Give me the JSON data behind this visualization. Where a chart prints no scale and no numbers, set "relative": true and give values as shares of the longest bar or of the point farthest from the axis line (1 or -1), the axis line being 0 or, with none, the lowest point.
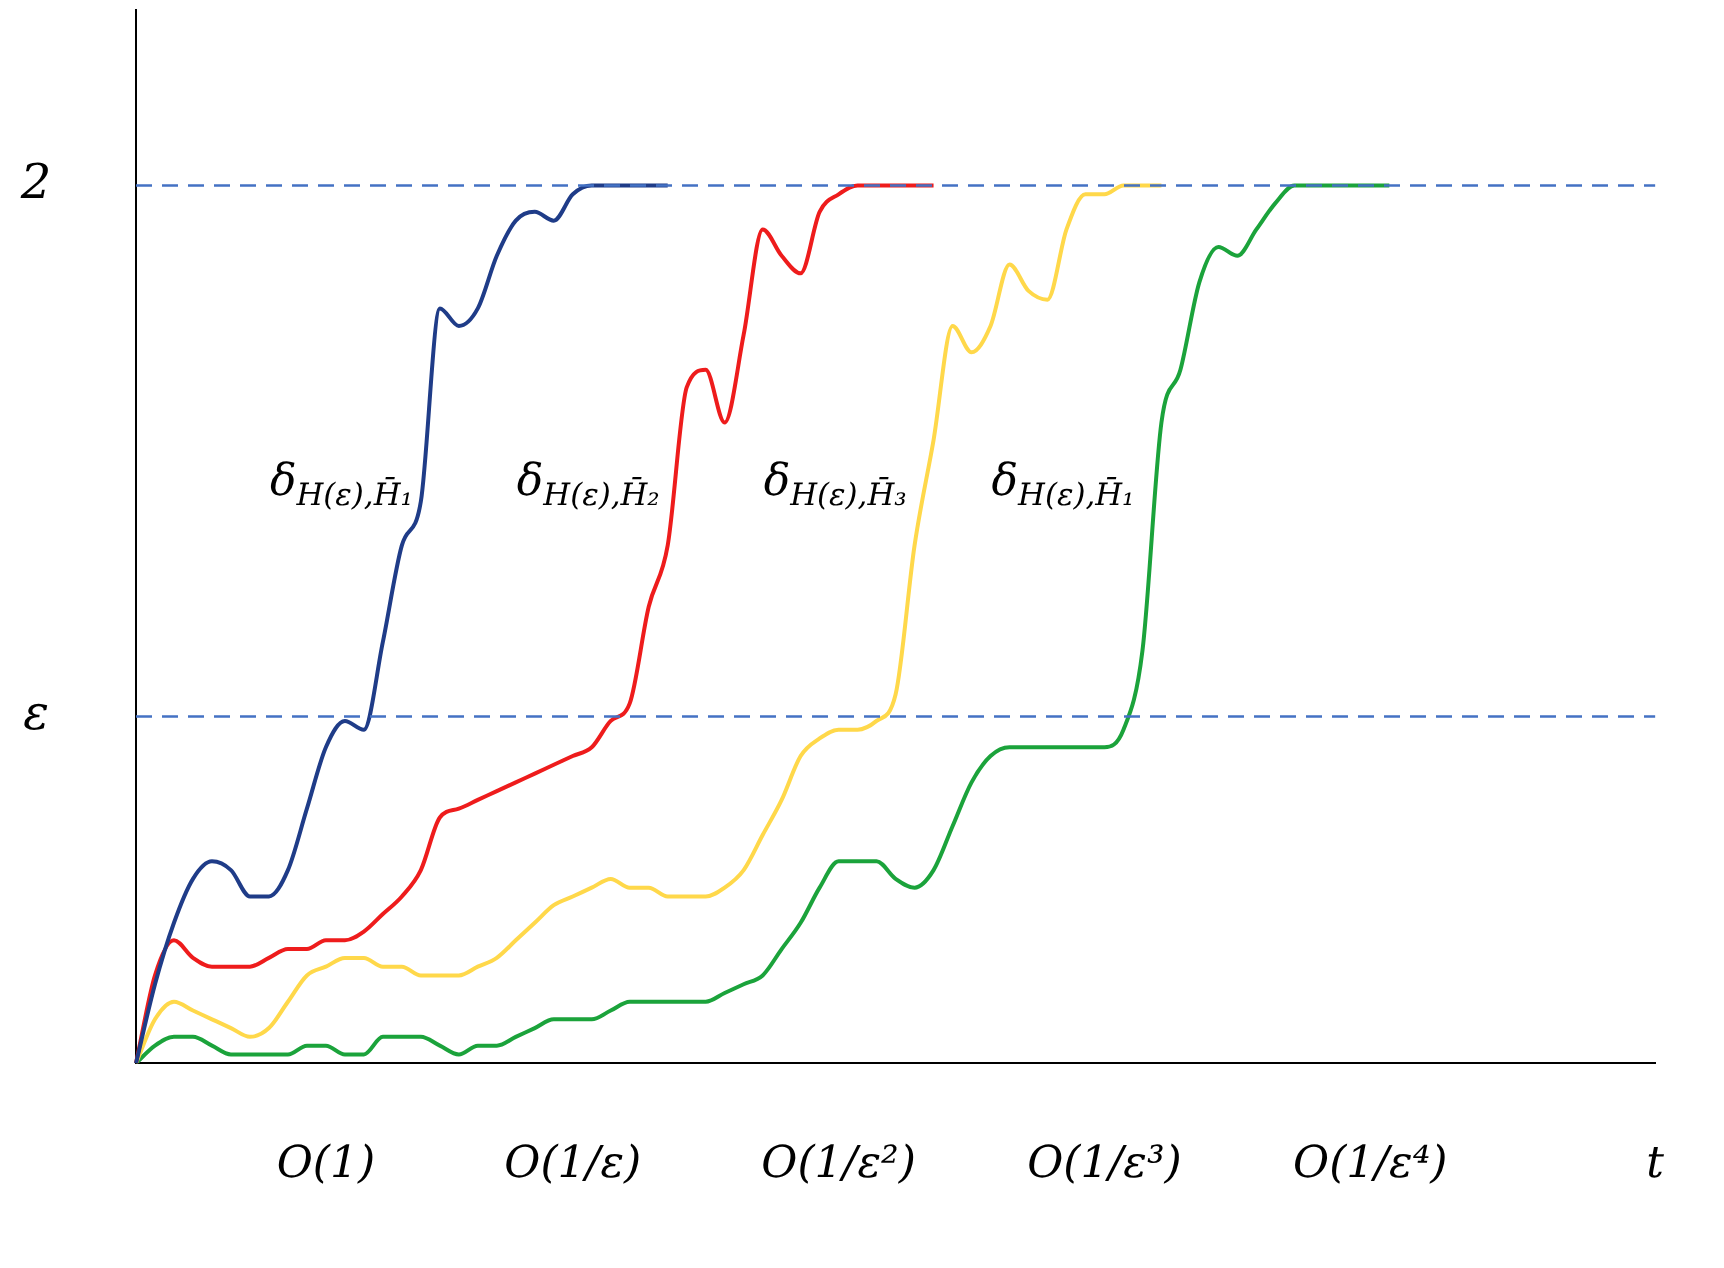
{
  "chart_data": {
    "type": "line",
    "relative": true,
    "legend": false,
    "marker": "none",
    "line_style": "solid",
    "annotations": [
      "2",
      "ε"
    ],
    "categories": [
      null,
      null,
      null,
      null,
      null,
      null,
      null,
      null,
      null,
      null,
      "O(1)",
      null,
      null,
      null,
      null,
      null,
      null,
      null,
      null,
      null,
      null,
      null,
      null,
      "O(1/ε)",
      null,
      null,
      null,
      null,
      null,
      null,
      null,
      null,
      null,
      null,
      null,
      null,
      null,
      "O(1/ε²)",
      null,
      null,
      null,
      null,
      null,
      null,
      null,
      null,
      null,
      null,
      null,
      null,
      null,
      "O(1/ε³)",
      null,
      null,
      null,
      null,
      null,
      null,
      null,
      null,
      null,
      null,
      null,
      null,
      null,
      "O(1/ε⁴)",
      null,
      null,
      null,
      null,
      null,
      null,
      null,
      null,
      null,
      null,
      null,
      null,
      null,
      null,
      "t"
    ],
    "series": [
      {
        "name": "δ$_{H(ε),H̄₁}$",
        "color": "#1f3c88",
        "values": [
          0,
          0.09,
          0.16,
          0.21,
          0.23,
          0.22,
          0.19,
          0.19,
          0.22,
          0.29,
          0.36,
          0.39,
          0.38,
          0.48,
          0.59,
          0.64,
          0.86,
          0.84,
          0.86,
          0.92,
          0.96,
          0.97,
          0.96,
          0.99,
          1,
          1,
          1,
          1,
          1,
          null,
          null,
          null,
          null,
          null,
          null,
          null,
          null,
          null,
          null,
          null,
          null,
          null,
          null,
          null,
          null,
          null,
          null,
          null,
          null,
          null,
          null,
          null,
          null,
          null,
          null,
          null,
          null,
          null,
          null,
          null,
          null,
          null,
          null,
          null,
          null,
          null,
          null,
          null,
          null,
          null,
          null,
          null,
          null,
          null,
          null,
          null,
          null,
          null,
          null,
          null,
          null
        ]
      },
      {
        "name": "δ$_{H(ε),H̄₂}$",
        "color": "#ee1c1c",
        "values": [
          0,
          0.1,
          0.14,
          0.12,
          0.11,
          0.11,
          0.11,
          0.12,
          0.13,
          0.13,
          0.14,
          0.14,
          0.15,
          0.17,
          0.19,
          0.22,
          0.28,
          0.29,
          0.3,
          0.31,
          0.32,
          0.33,
          0.34,
          0.35,
          0.36,
          0.39,
          0.41,
          0.52,
          0.59,
          0.77,
          0.79,
          0.73,
          0.83,
          0.95,
          0.92,
          0.9,
          0.97,
          0.99,
          1,
          1,
          1,
          1,
          1,
          null,
          null,
          null,
          null,
          null,
          null,
          null,
          null,
          null,
          null,
          null,
          null,
          null,
          null,
          null,
          null,
          null,
          null,
          null,
          null,
          null,
          null,
          null,
          null,
          null,
          null,
          null,
          null,
          null,
          null,
          null,
          null,
          null,
          null,
          null,
          null,
          null,
          null
        ]
      },
      {
        "name": "δ$_{H(ε),H̄₃}$",
        "color": "#ffd84a",
        "values": [
          0,
          0.05,
          0.07,
          0.06,
          0.05,
          0.04,
          0.03,
          0.04,
          0.07,
          0.1,
          0.11,
          0.12,
          0.12,
          0.11,
          0.11,
          0.1,
          0.1,
          0.1,
          0.11,
          0.12,
          0.14,
          0.16,
          0.18,
          0.19,
          0.2,
          0.21,
          0.2,
          0.2,
          0.19,
          0.19,
          0.19,
          0.2,
          0.22,
          0.26,
          0.3,
          0.35,
          0.37,
          0.38,
          0.38,
          0.39,
          0.42,
          0.59,
          0.71,
          0.84,
          0.81,
          0.84,
          0.91,
          0.88,
          0.87,
          0.95,
          0.99,
          0.99,
          1,
          1,
          1,
          null,
          null,
          null,
          null,
          null,
          null,
          null,
          null,
          null,
          null,
          null,
          null,
          null,
          null,
          null,
          null,
          null,
          null,
          null,
          null,
          null,
          null,
          null,
          null,
          null,
          null
        ]
      },
      {
        "name": "δ$_{H(ε),H̄₁}$",
        "color": "#1ba33b",
        "values": [
          0,
          0.02,
          0.03,
          0.03,
          0.02,
          0.01,
          0.01,
          0.01,
          0.01,
          0.02,
          0.02,
          0.01,
          0.01,
          0.03,
          0.03,
          0.03,
          0.02,
          0.01,
          0.02,
          0.02,
          0.03,
          0.04,
          0.05,
          0.05,
          0.05,
          0.06,
          0.07,
          0.07,
          0.07,
          0.07,
          0.07,
          0.08,
          0.09,
          0.1,
          0.13,
          0.16,
          0.2,
          0.23,
          0.23,
          0.23,
          0.21,
          0.2,
          0.22,
          0.27,
          0.32,
          0.35,
          0.36,
          0.36,
          0.36,
          0.36,
          0.36,
          0.36,
          0.38,
          0.47,
          0.73,
          0.79,
          0.89,
          0.93,
          0.92,
          0.95,
          0.98,
          1,
          1,
          1,
          1,
          1,
          1,
          null,
          null,
          null,
          null,
          null,
          null,
          null,
          null,
          null,
          null,
          null,
          null,
          null,
          null
        ]
      }
    ],
    "ref_lines": [
      {
        "axis": "y",
        "value": 1,
        "color": "#4472c4",
        "line_style": "dashed"
      },
      {
        "axis": "y",
        "value": 0.395,
        "color": "#4472c4",
        "line_style": "dashed"
      }
    ]
  }
}
